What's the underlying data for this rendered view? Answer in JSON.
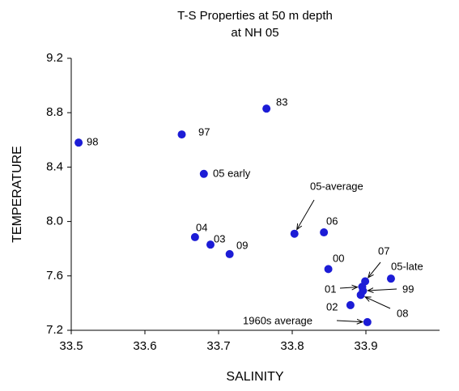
{
  "chart_data": {
    "type": "scatter",
    "title": "T-S Properties at 50 m depth",
    "subtitle": "at NH 05",
    "x_label": "SALINITY",
    "y_label": "TEMPERATURE",
    "color": "#1c1cd6",
    "xlim": [
      33.5,
      34.0
    ],
    "ylim": [
      7.2,
      9.2
    ],
    "xticks": [
      33.5,
      33.6,
      33.7,
      33.8,
      33.9
    ],
    "yticks": [
      7.2,
      7.6,
      {
        "value": 8,
        "label": "8.0"
      },
      8.4,
      8.8,
      9.2
    ],
    "point_labels": [
      "98",
      "97",
      "83",
      "05 early",
      "04",
      "03",
      "09",
      "05-average",
      "06",
      "00",
      "07",
      "05-late",
      "01",
      "99",
      "08",
      "02",
      "1960s average"
    ],
    "x": [
      33.51,
      33.65,
      33.765,
      33.68,
      33.668,
      33.689,
      33.715,
      33.803,
      33.843,
      33.849,
      33.899,
      33.934,
      33.895,
      33.896,
      33.893,
      33.879,
      33.902
    ],
    "values": [
      8.58,
      8.64,
      8.83,
      8.35,
      7.885,
      7.83,
      7.76,
      7.91,
      7.92,
      7.65,
      7.56,
      7.58,
      7.52,
      7.49,
      7.46,
      7.385,
      7.26
    ]
  }
}
